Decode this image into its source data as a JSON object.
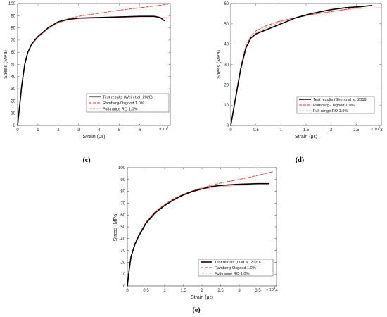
{
  "chart_data": [
    {
      "type": "line",
      "panel": "(c)",
      "xlabel": "Strain (με)",
      "ylabel": "Stress (MPa)",
      "x_multiplier": "× 10^4",
      "xlim": [
        0,
        7.5
      ],
      "ylim": [
        0,
        100
      ],
      "xticks": [
        "0",
        "1",
        "2",
        "3",
        "4",
        "5",
        "6",
        "7"
      ],
      "yticks": [
        "0",
        "10",
        "20",
        "30",
        "40",
        "50",
        "60",
        "70",
        "80",
        "90",
        "100"
      ],
      "legend_position": "bottom-right",
      "series": [
        {
          "name": "Test results (Wei et al. 2020)",
          "color": "#000000",
          "style": "solid",
          "x": [
            0,
            0.2,
            0.35,
            0.5,
            0.7,
            1.0,
            1.5,
            2.0,
            2.5,
            3.0,
            4.0,
            5.0,
            6.0,
            6.7,
            7.0,
            7.2
          ],
          "y": [
            0,
            32,
            50,
            60,
            67,
            73,
            80,
            85,
            87,
            88,
            88.5,
            89,
            89.5,
            89.5,
            88.5,
            86
          ]
        },
        {
          "name": "Ramberg-Osgood 1.0%",
          "color": "#e03030",
          "style": "dashed",
          "x": [
            0,
            0.2,
            0.35,
            0.5,
            0.7,
            1.0,
            1.5,
            2.0,
            2.5,
            3.0,
            4.0,
            5.0,
            6.0,
            7.0,
            7.4
          ],
          "y": [
            0,
            33,
            51,
            60,
            67,
            73,
            80,
            85,
            87.5,
            89.5,
            92,
            94.5,
            96.5,
            98.5,
            99.5
          ]
        },
        {
          "name": "Full-range RO 1.0%",
          "color": "#ff9a9a",
          "style": "dotted",
          "x": [
            0,
            0.2,
            0.35,
            0.5,
            0.7,
            1.0,
            1.5,
            2.0,
            2.5,
            3.0,
            4.0,
            5.0,
            6.0,
            7.0,
            7.4
          ],
          "y": [
            0,
            32,
            50,
            59,
            66,
            72,
            79,
            84,
            86.5,
            87.5,
            88,
            88.5,
            88.5,
            88.5,
            88.5
          ]
        }
      ]
    },
    {
      "type": "line",
      "panel": "(d)",
      "xlabel": "Strain (με)",
      "ylabel": "Stress (MPa)",
      "x_multiplier": "× 10^4",
      "xlim": [
        0,
        3
      ],
      "ylim": [
        0,
        60
      ],
      "xticks": [
        "0",
        "0.5",
        "1",
        "1.5",
        "2",
        "2.5",
        "3"
      ],
      "yticks": [
        "0",
        "10",
        "20",
        "30",
        "40",
        "50",
        "60"
      ],
      "legend_position": "bottom-right",
      "series": [
        {
          "name": "Test results (Sheng et al. 2019)",
          "color": "#000000",
          "style": "solid",
          "x": [
            0,
            0.1,
            0.2,
            0.3,
            0.4,
            0.5,
            0.7,
            1.0,
            1.3,
            1.6,
            2.0,
            2.3,
            2.6,
            2.8
          ],
          "y": [
            0,
            14,
            28,
            38,
            43,
            45,
            47,
            50,
            53,
            55,
            57,
            58,
            58.5,
            59
          ]
        },
        {
          "name": "Ramberg-Osgood 1.0%",
          "color": "#e03030",
          "style": "dashed",
          "x": [
            0,
            0.1,
            0.2,
            0.3,
            0.4,
            0.5,
            0.7,
            1.0,
            1.3,
            1.6,
            2.0,
            2.5,
            2.8
          ],
          "y": [
            0,
            15,
            29,
            39,
            44,
            46.5,
            49,
            51.5,
            53,
            54.5,
            56,
            58,
            59
          ]
        },
        {
          "name": "Full-range RO 1.0%",
          "color": "#ff9a9a",
          "style": "dotted",
          "x": [
            0,
            0.1,
            0.2,
            0.3,
            0.4,
            0.5,
            0.7,
            1.0,
            1.3,
            1.6,
            2.0,
            2.5,
            3.0
          ],
          "y": [
            0,
            14,
            28,
            38,
            43,
            45.5,
            48,
            51,
            53,
            54.5,
            56,
            57.5,
            58
          ]
        }
      ]
    },
    {
      "type": "line",
      "panel": "(e)",
      "xlabel": "Strain (με)",
      "ylabel": "Stress (MPa)",
      "x_multiplier": "× 10^4",
      "xlim": [
        0,
        4
      ],
      "ylim": [
        0,
        100
      ],
      "xticks": [
        "0",
        "0.5",
        "1",
        "1.5",
        "2",
        "2.5",
        "3",
        "3.5",
        "4"
      ],
      "yticks": [
        "0",
        "10",
        "20",
        "30",
        "40",
        "50",
        "60",
        "70",
        "80",
        "90",
        "100"
      ],
      "legend_position": "bottom-right",
      "series": [
        {
          "name": "Test results (Li et al. 2020)",
          "color": "#000000",
          "style": "solid",
          "x": [
            0,
            0.05,
            0.1,
            0.2,
            0.3,
            0.5,
            0.75,
            1.0,
            1.25,
            1.5,
            1.75,
            2.0,
            2.25,
            2.5,
            3.0,
            3.5,
            3.8
          ],
          "y": [
            0,
            14,
            25,
            35,
            42,
            53,
            62,
            68,
            73,
            77,
            80,
            82,
            84,
            85,
            86,
            86.5,
            86.5
          ]
        },
        {
          "name": "Ramberg-Osgood 1.0%",
          "color": "#e03030",
          "style": "dashed",
          "x": [
            0,
            0.05,
            0.1,
            0.2,
            0.3,
            0.5,
            0.75,
            1.0,
            1.25,
            1.5,
            1.75,
            2.0,
            2.25,
            2.5,
            3.0,
            3.5,
            3.9
          ],
          "y": [
            0,
            14,
            25,
            36,
            43,
            54,
            63,
            69,
            74,
            77.5,
            80.5,
            83,
            85,
            87,
            90,
            93.5,
            96.5
          ]
        },
        {
          "name": "Full-range RO 1.0%",
          "color": "#ff9a9a",
          "style": "dotted",
          "x": [
            0,
            0.05,
            0.1,
            0.2,
            0.3,
            0.5,
            0.75,
            1.0,
            1.25,
            1.5,
            1.75,
            2.0,
            2.25,
            2.5,
            3.0,
            3.5,
            3.9
          ],
          "y": [
            0,
            14,
            25,
            35,
            42,
            53,
            62,
            68,
            72.5,
            76.5,
            79.5,
            81.5,
            83,
            84,
            85,
            85.5,
            85.5
          ]
        }
      ]
    }
  ]
}
